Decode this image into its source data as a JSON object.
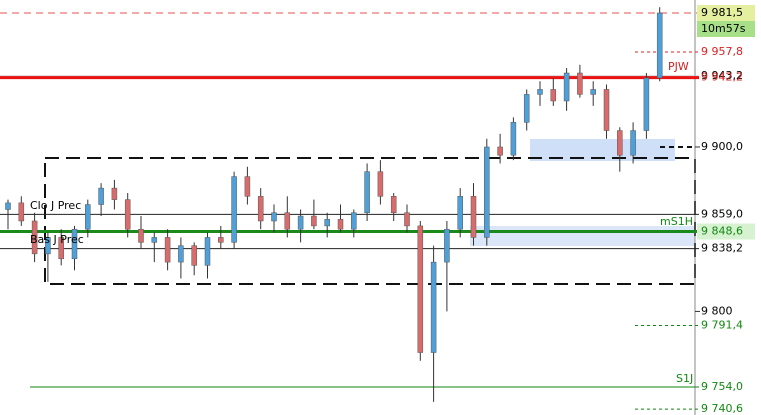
{
  "chart_data": {
    "type": "candlestick",
    "ylim": [
      9737,
      9989.4
    ],
    "yticks": [
      {
        "value": 9800,
        "label": "9 800"
      },
      {
        "value": 9900,
        "label": "9 900,0"
      }
    ],
    "up_color": "#4f9fd8",
    "down_color": "#d86c6c",
    "open": [
      9862,
      9866,
      9855,
      9835,
      9845,
      9832,
      9850,
      9865,
      9875,
      9868,
      9850,
      9842,
      9845,
      9830,
      9840,
      9828,
      9845,
      9842,
      9882,
      9870,
      9855,
      9860,
      9850,
      9858,
      9852,
      9856,
      9850,
      9860,
      9885,
      9870,
      9860,
      9852,
      9775,
      9830,
      9850,
      9870,
      9845,
      9900,
      9895,
      9915,
      9932,
      9935,
      9928,
      9945,
      9932,
      9935,
      9910,
      9895,
      9910,
      9942
    ],
    "high": [
      9868,
      9870,
      9860,
      9848,
      9850,
      9852,
      9868,
      9878,
      9880,
      9872,
      9858,
      9848,
      9850,
      9845,
      9842,
      9848,
      9852,
      9885,
      9888,
      9875,
      9865,
      9870,
      9862,
      9868,
      9860,
      9865,
      9862,
      9890,
      9892,
      9872,
      9865,
      9855,
      9840,
      9855,
      9875,
      9878,
      9905,
      9908,
      9918,
      9935,
      9940,
      9942,
      9948,
      9950,
      9940,
      9938,
      9912,
      9915,
      9945,
      9985
    ],
    "low": [
      9850,
      9852,
      9830,
      9818,
      9828,
      9825,
      9845,
      9858,
      9862,
      9845,
      9838,
      9830,
      9825,
      9820,
      9822,
      9820,
      9838,
      9838,
      9865,
      9850,
      9848,
      9845,
      9842,
      9850,
      9845,
      9848,
      9845,
      9855,
      9865,
      9855,
      9848,
      9770,
      9745,
      9800,
      9845,
      9840,
      9840,
      9890,
      9892,
      9910,
      9925,
      9925,
      9922,
      9930,
      9925,
      9905,
      9885,
      9890,
      9905,
      9940
    ],
    "close": [
      9866,
      9855,
      9835,
      9845,
      9832,
      9850,
      9865,
      9875,
      9868,
      9850,
      9842,
      9845,
      9830,
      9840,
      9828,
      9845,
      9842,
      9882,
      9870,
      9855,
      9860,
      9850,
      9858,
      9852,
      9856,
      9850,
      9860,
      9885,
      9870,
      9860,
      9852,
      9775,
      9830,
      9850,
      9870,
      9845,
      9900,
      9895,
      9915,
      9932,
      9935,
      9928,
      9945,
      9932,
      9935,
      9910,
      9895,
      9910,
      9942,
      9981.5
    ],
    "levels": [
      {
        "value": 9981.5,
        "label": "9 981,5",
        "color": "#000000",
        "bg": "#e4f0a0",
        "line": "#e05050",
        "style": "dashed"
      },
      {
        "value": 9957.8,
        "label": "9 957,8",
        "color": "#e02020",
        "line": "#e02020",
        "style": "dotted"
      },
      {
        "value": 9943.2,
        "label": "9 943,2",
        "color": "#000000",
        "line": "#bbbbbb",
        "style": "solid"
      },
      {
        "value": 9942.2,
        "label": "9 942,2",
        "color": "#e02020",
        "line": "#ee1111",
        "style": "thick"
      },
      {
        "value": 9859,
        "label": "9 859,0",
        "color": "#000000",
        "line": "#222222",
        "style": "solid"
      },
      {
        "value": 9848.6,
        "label": "9 848,6",
        "color": "#118811",
        "bg": "#d6f2d0",
        "line": "#1a8a1a",
        "style": "thick"
      },
      {
        "value": 9838.2,
        "label": "9 838,2",
        "color": "#000000",
        "line": "#222222",
        "style": "solid"
      },
      {
        "value": 9791.4,
        "label": "9 791,4",
        "color": "#118811",
        "line": "#118811",
        "style": "dotted"
      },
      {
        "value": 9754,
        "label": "9 754,0",
        "color": "#118811",
        "line": "#118811",
        "style": "solid"
      },
      {
        "value": 9740.6,
        "label": "9 740,6",
        "color": "#118811",
        "line": "#118811",
        "style": "dotted"
      }
    ],
    "timer": "10m57s",
    "annotations": [
      "PJW",
      "Clo J Prec",
      "Bas J Prec",
      "mS1H",
      "S1J"
    ]
  }
}
